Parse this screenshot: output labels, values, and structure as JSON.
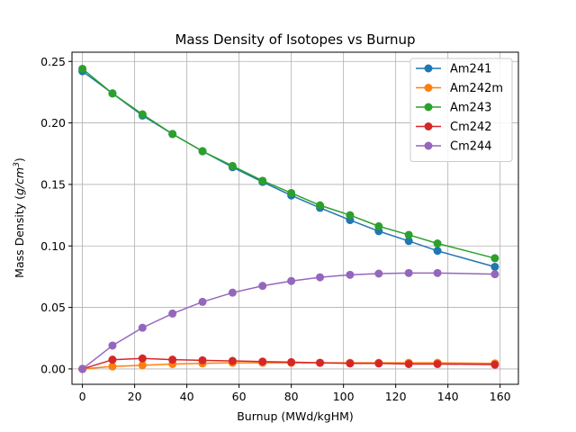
{
  "chart_data": {
    "type": "line",
    "title": "Mass Density of Isotopes vs Burnup",
    "xlabel": "Burnup (MWd/kgHM)",
    "ylabel_main": "Mass Density (",
    "ylabel_unit": "g/cm",
    "ylabel_exp": "3",
    "ylabel_close": ")",
    "xlim": [
      -4,
      167
    ],
    "ylim": [
      -0.0125,
      0.2575
    ],
    "xticks": [
      0,
      20,
      40,
      60,
      80,
      100,
      120,
      140,
      160
    ],
    "yticks": [
      0.0,
      0.05,
      0.1,
      0.15,
      0.2,
      0.25
    ],
    "ytick_labels": [
      "0.00",
      "0.05",
      "0.10",
      "0.15",
      "0.20",
      "0.25"
    ],
    "grid": true,
    "legend_position": "top-right",
    "x": [
      0,
      11.5,
      23,
      34.5,
      46,
      57.5,
      69,
      80,
      91,
      102.5,
      113.5,
      125,
      136,
      158
    ],
    "series": [
      {
        "name": "Am241",
        "color": "#1f77b4",
        "values": [
          0.242,
          0.224,
          0.206,
          0.191,
          0.177,
          0.164,
          0.152,
          0.141,
          0.131,
          0.121,
          0.112,
          0.104,
          0.096,
          0.083
        ]
      },
      {
        "name": "Am242m",
        "color": "#ff7f0e",
        "values": [
          0.0,
          0.002,
          0.003,
          0.004,
          0.0045,
          0.005,
          0.005,
          0.005,
          0.005,
          0.005,
          0.005,
          0.005,
          0.005,
          0.0045
        ]
      },
      {
        "name": "Am243",
        "color": "#2ca02c",
        "values": [
          0.244,
          0.224,
          0.207,
          0.191,
          0.177,
          0.165,
          0.153,
          0.143,
          0.133,
          0.125,
          0.116,
          0.109,
          0.102,
          0.09
        ]
      },
      {
        "name": "Cm242",
        "color": "#d62728",
        "values": [
          0.0,
          0.0075,
          0.0085,
          0.0075,
          0.007,
          0.0065,
          0.006,
          0.0055,
          0.005,
          0.0045,
          0.0045,
          0.004,
          0.004,
          0.0035
        ]
      },
      {
        "name": "Cm244",
        "color": "#9467bd",
        "values": [
          0.0,
          0.019,
          0.0335,
          0.045,
          0.0545,
          0.062,
          0.0675,
          0.0715,
          0.0745,
          0.0765,
          0.0775,
          0.078,
          0.078,
          0.077
        ]
      }
    ]
  }
}
